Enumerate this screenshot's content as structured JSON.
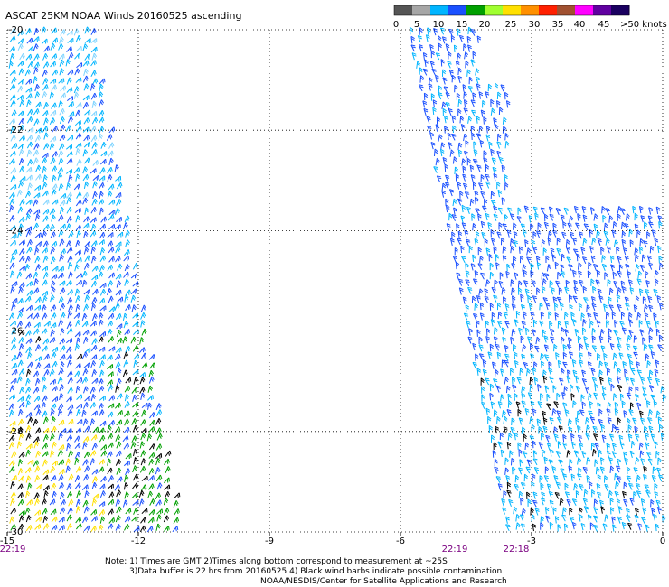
{
  "title": "ASCAT 25KM NOAA Winds 20160525 ascending",
  "legend": {
    "ticks": [
      "0",
      "5",
      "10",
      "15",
      "20",
      "25",
      "30",
      "35",
      "40",
      "45",
      ">50 knots"
    ],
    "colors": [
      "#555555",
      "#a6a6a6",
      "#00b5ff",
      "#1a50ff",
      "#00a000",
      "#a0ff30",
      "#ffe000",
      "#ff9000",
      "#ff2000",
      "#a05030",
      "#ff00ff",
      "#6000a0",
      "#1a0060"
    ]
  },
  "map": {
    "lat_labels": [
      "-20",
      "-22",
      "-24",
      "-26",
      "-28",
      "-30"
    ],
    "lon_labels": [
      "-15",
      "-12",
      "-9",
      "-6",
      "-3",
      "0"
    ],
    "time_labels": [
      "22:19",
      "22:19",
      "22:18"
    ],
    "lat_range": [
      -30,
      -20
    ],
    "lon_range": [
      -15,
      0
    ],
    "grid": true,
    "swaths": [
      {
        "name": "west",
        "side": "left"
      },
      {
        "name": "east",
        "side": "right"
      }
    ]
  },
  "notes": {
    "line1": "Note: 1) Times are GMT 2)Times along bottom correspond to measurement at ~25S",
    "line2": "3)Data buffer is 22 hrs from 20160525 4) Black wind barbs indicate possible contamination",
    "line3": "NOAA/NESDIS/Center for Satellite Applications and Research"
  }
}
